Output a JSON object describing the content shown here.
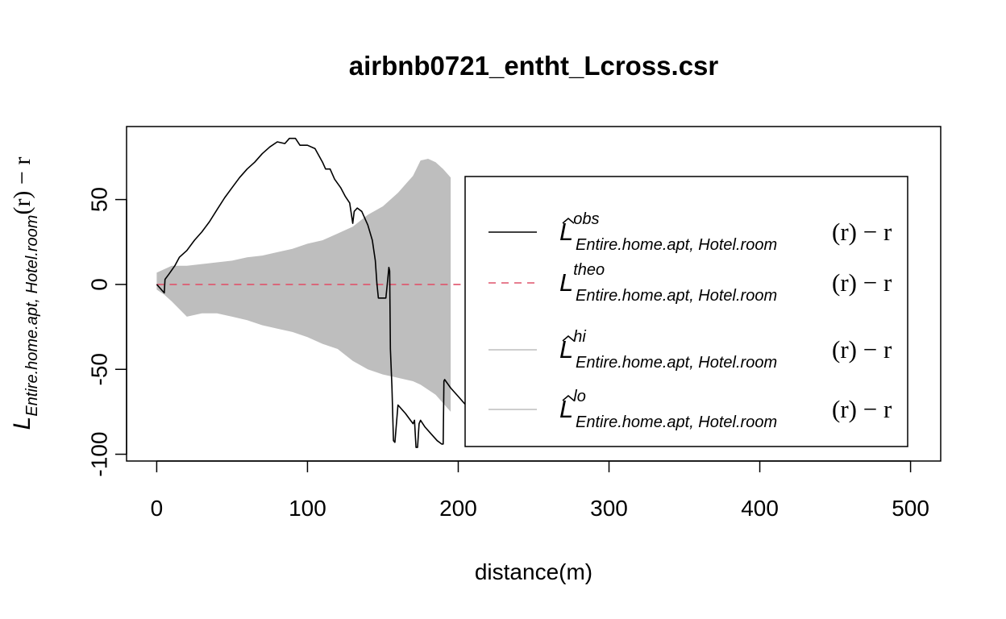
{
  "chart_data": {
    "type": "line",
    "title": "airbnb0721_entht_Lcross.csr",
    "xlabel": "distance(m)",
    "ylabel": {
      "main": "L",
      "subscript": "Entire.home.apt, Hotel.room",
      "suffix": "(r) − r"
    },
    "xlim": [
      -20,
      520
    ],
    "ylim": [
      -104,
      93
    ],
    "x_ticks": [
      0,
      100,
      200,
      300,
      400,
      500
    ],
    "y_ticks": [
      -100,
      -50,
      0,
      50
    ],
    "legend_position": "right",
    "series": [
      {
        "key": "obs",
        "kind": "line",
        "color": "#000000",
        "dash": "solid",
        "x": [
          0,
          5,
          5.5,
          8,
          12,
          15,
          20,
          25,
          30,
          35,
          40,
          45,
          50,
          55,
          60,
          65,
          70,
          75,
          80,
          85,
          88,
          92,
          95,
          100,
          105,
          110,
          112,
          115,
          118,
          122,
          125,
          128,
          130,
          131,
          133,
          136,
          140,
          143,
          145,
          146,
          147,
          148,
          150,
          152,
          153,
          154,
          154.5,
          155,
          156,
          157,
          158,
          160,
          165,
          170,
          171,
          172,
          173,
          174,
          175,
          178,
          182,
          186,
          189,
          190,
          190.5,
          191,
          195,
          200,
          205,
          210,
          216
        ],
        "y": [
          0,
          -5,
          3,
          6,
          11,
          16,
          20,
          26,
          31,
          37,
          44,
          51,
          57,
          63,
          68,
          72,
          77,
          81,
          84,
          83,
          86,
          86,
          82,
          82,
          80,
          72,
          68,
          68,
          62,
          57,
          52,
          48,
          36,
          43,
          45,
          43,
          35,
          26,
          14,
          1,
          -8,
          -8,
          -8,
          -8,
          1,
          10,
          8,
          -38,
          -60,
          -92,
          -93,
          -71,
          -76,
          -82,
          -80,
          -96,
          -96,
          -82,
          -80,
          -84,
          -88,
          -92,
          -94,
          -94,
          -57,
          -56,
          -61,
          -66,
          -71,
          -76,
          -81
        ]
      },
      {
        "key": "theo",
        "kind": "line",
        "color": "#df536b",
        "dash": "dashed",
        "x": [
          0,
          420
        ],
        "y": [
          0,
          0
        ]
      },
      {
        "key": "hi",
        "kind": "band-upper",
        "color": "#bebebe",
        "x": [
          0,
          5,
          10,
          20,
          30,
          40,
          50,
          60,
          70,
          80,
          90,
          100,
          110,
          120,
          130,
          140,
          150,
          160,
          170,
          175,
          180,
          185,
          190,
          195
        ],
        "y": [
          7,
          9,
          11,
          11,
          12,
          13,
          14,
          16,
          17,
          19,
          21,
          24,
          26,
          30,
          34,
          41,
          46,
          54,
          64,
          73,
          74,
          72,
          68,
          63
        ]
      },
      {
        "key": "lo",
        "kind": "band-lower",
        "color": "#bebebe",
        "x": [
          0,
          5,
          10,
          20,
          30,
          40,
          50,
          60,
          70,
          80,
          90,
          100,
          110,
          120,
          130,
          140,
          150,
          160,
          170,
          175,
          180,
          185,
          190,
          195
        ],
        "y": [
          -3,
          -6,
          -10,
          -19,
          -17,
          -17,
          -19,
          -21,
          -24,
          -26,
          -28,
          -31,
          -35,
          -38,
          -45,
          -50,
          -53,
          -55,
          -57,
          -59,
          -62,
          -65,
          -70,
          -75
        ]
      }
    ],
    "legend": [
      {
        "key": "obs",
        "base": "L",
        "hat": true,
        "sup": "obs",
        "sub": "Entire.home.apt, Hotel.room",
        "tail_r": "(r)",
        "tail_minus": " − r",
        "color": "#000000",
        "dash": "solid"
      },
      {
        "key": "theo",
        "base": "L",
        "hat": false,
        "sup": "theo",
        "sub": "Entire.home.apt, Hotel.room",
        "tail_r": "(r)",
        "tail_minus": " − r",
        "color": "#df536b",
        "dash": "dashed"
      },
      {
        "key": "hi",
        "base": "L",
        "hat": true,
        "sup": "hi",
        "sub": "Entire.home.apt, Hotel.room",
        "tail_r": "(r)",
        "tail_minus": " − r",
        "color": "#bebebe",
        "dash": "solid"
      },
      {
        "key": "lo",
        "base": "L",
        "hat": true,
        "sup": "lo",
        "sub": "Entire.home.apt, Hotel.room",
        "tail_r": "(r)",
        "tail_minus": " − r",
        "color": "#bebebe",
        "dash": "solid"
      }
    ]
  }
}
